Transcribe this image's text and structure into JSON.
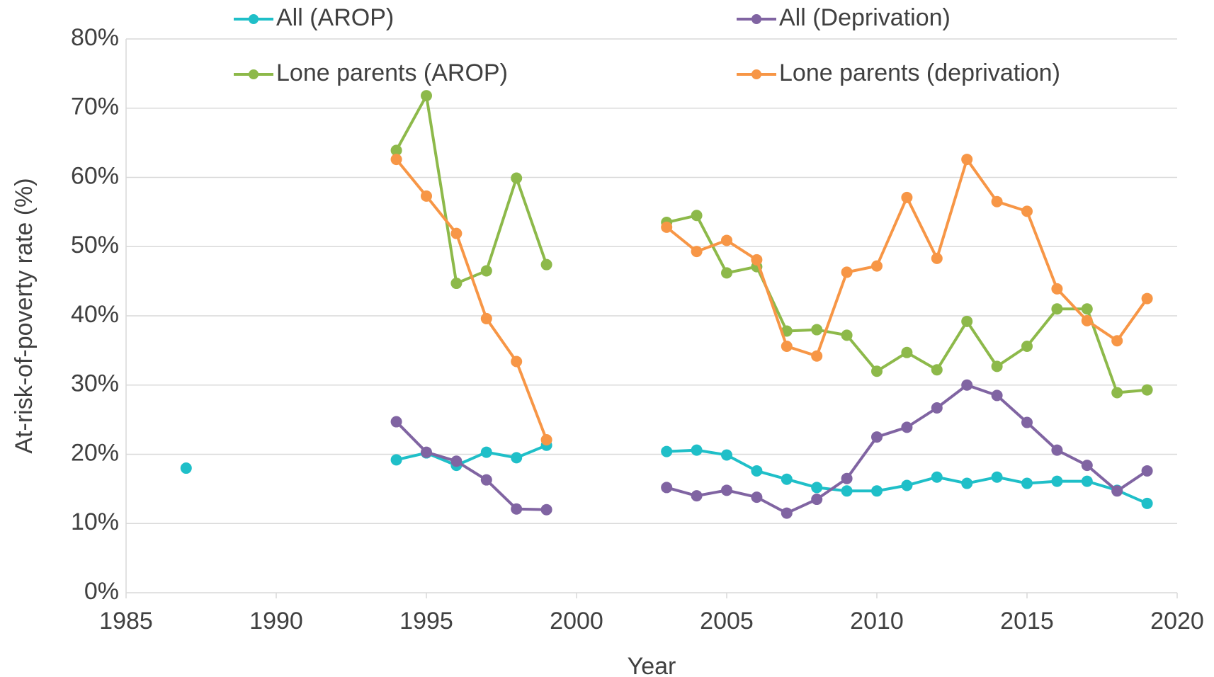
{
  "chart_data": {
    "type": "line",
    "x_label": "Year",
    "y_label": "At-risk-of-poverty rate (%)",
    "x": [
      1987,
      1988,
      1989,
      1990,
      1991,
      1992,
      1993,
      1994,
      1995,
      1996,
      1997,
      1998,
      1999,
      2000,
      2001,
      2002,
      2003,
      2004,
      2005,
      2006,
      2007,
      2008,
      2009,
      2010,
      2011,
      2012,
      2013,
      2014,
      2015,
      2016,
      2017,
      2018,
      2019
    ],
    "series": [
      {
        "name": "All (AROP)",
        "color": "#1fbfc8",
        "values": [
          18.0,
          null,
          null,
          null,
          null,
          null,
          null,
          19.2,
          20.2,
          18.4,
          20.3,
          19.5,
          21.3,
          null,
          null,
          null,
          20.4,
          20.6,
          19.9,
          17.6,
          16.4,
          15.2,
          14.7,
          14.7,
          15.5,
          16.7,
          15.8,
          16.7,
          15.8,
          16.1,
          16.1,
          14.8,
          12.9
        ]
      },
      {
        "name": "All (Deprivation)",
        "color": "#8064a2",
        "values": [
          null,
          null,
          null,
          null,
          null,
          null,
          null,
          24.7,
          20.3,
          19.0,
          16.3,
          12.1,
          12.0,
          null,
          null,
          null,
          15.2,
          14.0,
          14.8,
          13.8,
          11.5,
          13.5,
          16.5,
          22.5,
          23.9,
          26.7,
          30.0,
          28.5,
          24.6,
          20.6,
          18.4,
          14.7,
          17.6
        ]
      },
      {
        "name": "Lone parents (AROP)",
        "color": "#8db94a",
        "values": [
          null,
          null,
          null,
          null,
          null,
          null,
          null,
          63.9,
          71.8,
          44.7,
          46.5,
          59.9,
          47.4,
          null,
          null,
          null,
          53.5,
          54.5,
          46.2,
          47.1,
          37.8,
          38.0,
          37.2,
          32.0,
          34.7,
          32.2,
          39.2,
          32.7,
          35.6,
          41.0,
          41.0,
          28.9,
          29.3
        ]
      },
      {
        "name": "Lone parents (deprivation)",
        "color": "#f79646",
        "values": [
          null,
          null,
          null,
          null,
          null,
          null,
          null,
          62.6,
          57.3,
          51.9,
          39.6,
          33.4,
          22.1,
          null,
          null,
          null,
          52.8,
          49.3,
          50.9,
          48.1,
          35.6,
          34.2,
          46.3,
          47.2,
          57.1,
          48.3,
          62.6,
          56.5,
          55.1,
          43.9,
          39.3,
          36.4,
          42.5
        ]
      }
    ],
    "xlim": [
      1985,
      2020
    ],
    "xticks": [
      1985,
      1990,
      1995,
      2000,
      2005,
      2010,
      2015,
      2020
    ],
    "ylim": [
      0,
      80
    ],
    "yticks": [
      {
        "value": 0,
        "label": "0%"
      },
      {
        "value": 10,
        "label": "10%"
      },
      {
        "value": 20,
        "label": "20%"
      },
      {
        "value": 30,
        "label": "30%"
      },
      {
        "value": 40,
        "label": "40%"
      },
      {
        "value": 50,
        "label": "50%"
      },
      {
        "value": 60,
        "label": "60%"
      },
      {
        "value": 70,
        "label": "70%"
      },
      {
        "value": 80,
        "label": "80%"
      }
    ],
    "grid": true,
    "legend": "top"
  }
}
